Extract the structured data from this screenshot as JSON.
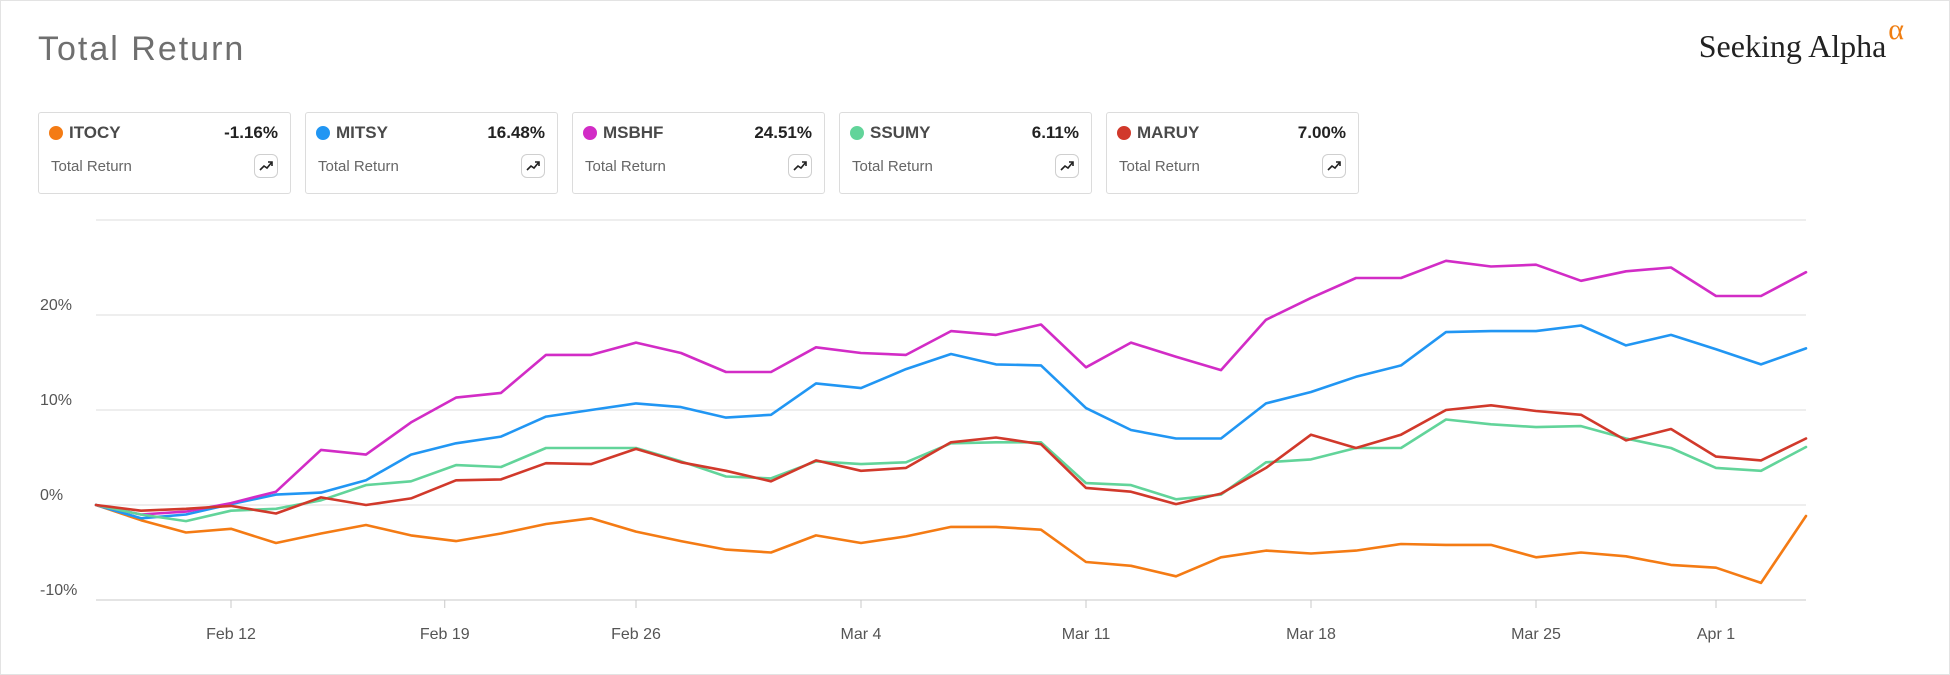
{
  "header": {
    "title": "Total Return",
    "brand_text": "Seeking Alpha",
    "brand_symbol": "α"
  },
  "cards": [
    {
      "symbol": "ITOCY",
      "value": "-1.16%",
      "label": "Total Return",
      "color": "#f47b14"
    },
    {
      "symbol": "MITSY",
      "value": "16.48%",
      "label": "Total Return",
      "color": "#2196f3"
    },
    {
      "symbol": "MSBHF",
      "value": "24.51%",
      "label": "Total Return",
      "color": "#d22cc6"
    },
    {
      "symbol": "SSUMY",
      "value": "6.11%",
      "label": "Total Return",
      "color": "#62d49a"
    },
    {
      "symbol": "MARUY",
      "value": "7.00%",
      "label": "Total Return",
      "color": "#d1392b"
    }
  ],
  "chart_data": {
    "type": "line",
    "title": "Total Return",
    "ylim": [
      -10,
      30
    ],
    "yticks": [
      {
        "value": -10,
        "label": "-10%"
      },
      {
        "value": 0,
        "label": "0%"
      },
      {
        "value": 10,
        "label": "10%"
      },
      {
        "value": 20,
        "label": "20%"
      }
    ],
    "xlim": [
      0,
      38
    ],
    "xticks": [
      {
        "x": 3,
        "label": "Feb 12"
      },
      {
        "x": 7.75,
        "label": "Feb 19"
      },
      {
        "x": 12,
        "label": "Feb 26"
      },
      {
        "x": 17,
        "label": "Mar 4"
      },
      {
        "x": 22,
        "label": "Mar 11"
      },
      {
        "x": 27,
        "label": "Mar 18"
      },
      {
        "x": 32,
        "label": "Mar 25"
      },
      {
        "x": 36,
        "label": "Apr 1"
      }
    ],
    "grid": true,
    "series": [
      {
        "name": "ITOCY",
        "color": "#f47b14",
        "values": [
          0,
          -1.6,
          -2.9,
          -2.5,
          -4.0,
          -3.0,
          -2.1,
          -3.2,
          -3.8,
          -3.0,
          -2.0,
          -1.4,
          -2.8,
          -3.8,
          -4.7,
          -5.0,
          -3.2,
          -4.0,
          -3.3,
          -2.3,
          -2.3,
          -2.6,
          -6.0,
          -6.4,
          -7.5,
          -5.5,
          -4.8,
          -5.1,
          -4.8,
          -4.1,
          -4.2,
          -4.2,
          -5.5,
          -5.0,
          -5.4,
          -6.3,
          -6.6,
          -8.2,
          -1.16
        ]
      },
      {
        "name": "MITSY",
        "color": "#2196f3",
        "values": [
          0,
          -1.4,
          -1.0,
          0.1,
          1.1,
          1.3,
          2.6,
          5.3,
          6.5,
          7.2,
          9.3,
          10.0,
          10.7,
          10.3,
          9.2,
          9.5,
          12.8,
          12.3,
          14.3,
          15.9,
          14.8,
          14.7,
          10.2,
          7.9,
          7.0,
          7.0,
          10.7,
          11.9,
          13.5,
          14.7,
          18.2,
          18.3,
          18.3,
          18.9,
          16.8,
          17.9,
          16.4,
          14.8,
          16.48
        ]
      },
      {
        "name": "MSBHF",
        "color": "#d22cc6",
        "values": [
          0,
          -1.0,
          -0.7,
          0.2,
          1.4,
          5.8,
          5.3,
          8.7,
          11.3,
          11.8,
          15.8,
          15.8,
          17.1,
          16.0,
          14.0,
          14.0,
          16.6,
          16.0,
          15.8,
          18.3,
          17.9,
          19.0,
          14.5,
          17.1,
          15.6,
          14.2,
          19.5,
          21.8,
          23.9,
          23.9,
          25.7,
          25.1,
          25.3,
          23.6,
          24.6,
          25.0,
          22.0,
          22.0,
          24.51
        ]
      },
      {
        "name": "SSUMY",
        "color": "#62d49a",
        "values": [
          0,
          -1.0,
          -1.7,
          -0.6,
          -0.4,
          0.5,
          2.1,
          2.5,
          4.2,
          4.0,
          6.0,
          6.0,
          6.0,
          4.6,
          3.0,
          2.8,
          4.6,
          4.3,
          4.5,
          6.5,
          6.6,
          6.6,
          2.3,
          2.1,
          0.6,
          1.1,
          4.5,
          4.8,
          6.0,
          6.0,
          9.0,
          8.5,
          8.2,
          8.3,
          7.0,
          6.0,
          3.9,
          3.6,
          6.11
        ]
      },
      {
        "name": "MARUY",
        "color": "#d1392b",
        "values": [
          0,
          -0.6,
          -0.4,
          -0.1,
          -0.9,
          0.8,
          0.0,
          0.7,
          2.6,
          2.7,
          4.4,
          4.3,
          5.9,
          4.5,
          3.6,
          2.5,
          4.7,
          3.6,
          3.9,
          6.6,
          7.1,
          6.4,
          1.8,
          1.4,
          0.1,
          1.2,
          3.9,
          7.4,
          6.0,
          7.4,
          10.0,
          10.5,
          9.9,
          9.5,
          6.8,
          8.0,
          5.1,
          4.7,
          7.0
        ]
      }
    ]
  }
}
